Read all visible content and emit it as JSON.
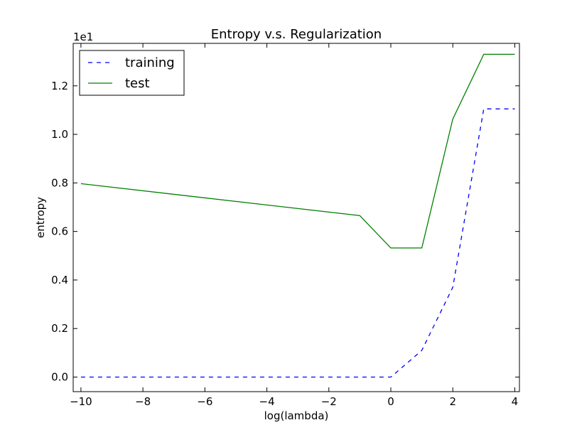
{
  "chart_data": {
    "type": "line",
    "title": "Entropy v.s. Regularization",
    "xlabel": "log(lambda)",
    "ylabel": "entropy",
    "y_offset_label": "1e1",
    "xlim": [
      -10.25,
      4.15
    ],
    "ylim": [
      -0.06,
      1.375
    ],
    "x_ticks": [
      -10,
      -8,
      -6,
      -4,
      -2,
      0,
      2,
      4
    ],
    "x_tick_labels": [
      "−10",
      "−8",
      "−6",
      "−4",
      "−2",
      "0",
      "2",
      "4"
    ],
    "y_ticks": [
      0.0,
      0.2,
      0.4,
      0.6,
      0.8,
      1.0,
      1.2
    ],
    "y_tick_labels": [
      "0.0",
      "0.2",
      "0.4",
      "0.6",
      "0.8",
      "1.0",
      "1.2"
    ],
    "grid": false,
    "legend_position": "top-left",
    "series": [
      {
        "name": "training",
        "color": "#0000ff",
        "style": "dashed",
        "x": [
          -10,
          -1,
          0,
          1,
          2,
          3,
          4
        ],
        "y": [
          0.0,
          0.0,
          0.0,
          0.11,
          0.37,
          1.105,
          1.105
        ]
      },
      {
        "name": "test",
        "color": "#008000",
        "style": "solid",
        "x": [
          -10,
          -1,
          0,
          1,
          2,
          3,
          4
        ],
        "y": [
          0.797,
          0.665,
          0.532,
          0.532,
          1.063,
          1.33,
          1.33
        ]
      }
    ]
  }
}
